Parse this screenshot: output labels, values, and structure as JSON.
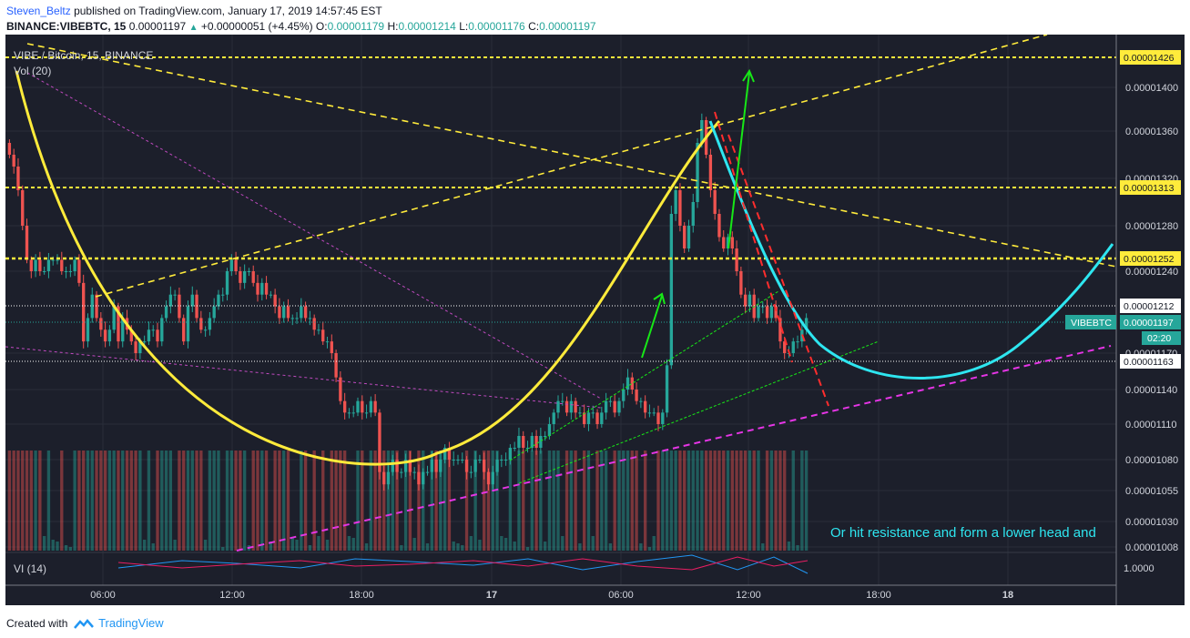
{
  "header": {
    "author": "Steven_Beltz",
    "published": "published on TradingView.com, January 17, 2019 14:57:45 EST",
    "symbol": "BINANCE:VIBEBTC, 15",
    "last": "0.00001197",
    "change": "+0.00000051 (+4.45%)",
    "o_label": "O:",
    "o": "0.00001179",
    "h_label": "H:",
    "h": "0.00001214",
    "l_label": "L:",
    "l": "0.00001176",
    "c_label": "C:",
    "c": "0.00001197"
  },
  "footer": {
    "created_with": "Created with",
    "brand": "TradingView"
  },
  "chart_data": {
    "type": "candlestick",
    "title": "VIBE / Bitcoin, 15, BINANCE",
    "volume_label": "Vol (20)",
    "indicator_label": "VI (14)",
    "indicator_value": "1.0000",
    "x_ticks": [
      "06:00",
      "12:00",
      "18:00",
      "17",
      "06:00",
      "12:00",
      "18:00",
      "18"
    ],
    "y_ticks": [
      "0.00001400",
      "0.00001360",
      "0.00001320",
      "0.00001280",
      "0.00001240",
      "0.00001170",
      "0.00001140",
      "0.00001110",
      "0.00001080",
      "0.00001055",
      "0.00001030",
      "0.00001008"
    ],
    "price_tags": [
      {
        "label": "0.00001426",
        "style": "yellow"
      },
      {
        "label": "0.00001313",
        "style": "yellow"
      },
      {
        "label": "0.00001252",
        "style": "yellow"
      },
      {
        "label": "0.00001212",
        "style": "white"
      },
      {
        "label": "VIBEBTC",
        "value": "0.00001197",
        "time": "02:20",
        "style": "teal"
      },
      {
        "label": "0.00001163",
        "style": "white"
      }
    ],
    "annotation_text": "Or hit resistance and form a lower head and",
    "colors": {
      "background": "#1c1f2b",
      "up": "#26a69a",
      "down": "#ef5350",
      "yellow": "#ffeb3b",
      "cyan": "#2ee6f0",
      "magenta": "#e535e5",
      "green": "#17e817",
      "red": "#ff2d2d"
    },
    "close_series": [
      1.34e-05,
      1.33e-05,
      1.31e-05,
      1.28e-05,
      1.25e-05,
      1.24e-05,
      1.25e-05,
      1.24e-05,
      1.24e-05,
      1.25e-05,
      1.25e-05,
      1.25e-05,
      1.24e-05,
      1.24e-05,
      1.24e-05,
      1.25e-05,
      1.23e-05,
      1.18e-05,
      1.2e-05,
      1.22e-05,
      1.2e-05,
      1.19e-05,
      1.18e-05,
      1.19e-05,
      1.21e-05,
      1.18e-05,
      1.2e-05,
      1.19e-05,
      1.18e-05,
      1.17e-05,
      1.18e-05,
      1.18e-05,
      1.19e-05,
      1.19e-05,
      1.18e-05,
      1.2e-05,
      1.21e-05,
      1.22e-05,
      1.22e-05,
      1.2e-05,
      1.18e-05,
      1.21e-05,
      1.22e-05,
      1.2e-05,
      1.19e-05,
      1.19e-05,
      1.2e-05,
      1.21e-05,
      1.22e-05,
      1.22e-05,
      1.24e-05,
      1.25e-05,
      1.24e-05,
      1.23e-05,
      1.24e-05,
      1.24e-05,
      1.23e-05,
      1.22e-05,
      1.23e-05,
      1.22e-05,
      1.22e-05,
      1.21e-05,
      1.2e-05,
      1.21e-05,
      1.2e-05,
      1.2e-05,
      1.2e-05,
      1.21e-05,
      1.2e-05,
      1.2e-05,
      1.19e-05,
      1.19e-05,
      1.18e-05,
      1.18e-05,
      1.17e-05,
      1.15e-05,
      1.13e-05,
      1.12e-05,
      1.12e-05,
      1.12e-05,
      1.13e-05,
      1.12e-05,
      1.12e-05,
      1.13e-05,
      1.12e-05,
      1.07e-05,
      1.06e-05,
      1.07e-05,
      1.08e-05,
      1.07e-05,
      1.07e-05,
      1.08e-05,
      1.07e-05,
      1.07e-05,
      1.06e-05,
      1.07e-05,
      1.07e-05,
      1.08e-05,
      1.07e-05,
      1.08e-05,
      1.09e-05,
      1.08e-05,
      1.08e-05,
      1.08e-05,
      1.08e-05,
      1.07e-05,
      1.07e-05,
      1.08e-05,
      1.08e-05,
      1.07e-05,
      1.06e-05,
      1.07e-05,
      1.08e-05,
      1.08e-05,
      1.08e-05,
      1.09e-05,
      1.09e-05,
      1.1e-05,
      1.09e-05,
      1.09e-05,
      1.1e-05,
      1.09e-05,
      1.1e-05,
      1.1e-05,
      1.11e-05,
      1.12e-05,
      1.13e-05,
      1.13e-05,
      1.12e-05,
      1.13e-05,
      1.12e-05,
      1.12e-05,
      1.11e-05,
      1.12e-05,
      1.12e-05,
      1.11e-05,
      1.12e-05,
      1.13e-05,
      1.13e-05,
      1.12e-05,
      1.13e-05,
      1.14e-05,
      1.15e-05,
      1.14e-05,
      1.13e-05,
      1.13e-05,
      1.12e-05,
      1.12e-05,
      1.12e-05,
      1.11e-05,
      1.12e-05,
      1.16e-05,
      1.29e-05,
      1.31e-05,
      1.28e-05,
      1.26e-05,
      1.28e-05,
      1.3e-05,
      1.35e-05,
      1.37e-05,
      1.34e-05,
      1.31e-05,
      1.29e-05,
      1.27e-05,
      1.26e-05,
      1.27e-05,
      1.26e-05,
      1.24e-05,
      1.22e-05,
      1.21e-05,
      1.22e-05,
      1.2e-05,
      1.21e-05,
      1.21e-05,
      1.2e-05,
      1.21e-05,
      1.2e-05,
      1.18e-05,
      1.17e-05,
      1.17e-05,
      1.18e-05,
      1.18e-05,
      1.19e-05,
      1.2e-05
    ]
  }
}
